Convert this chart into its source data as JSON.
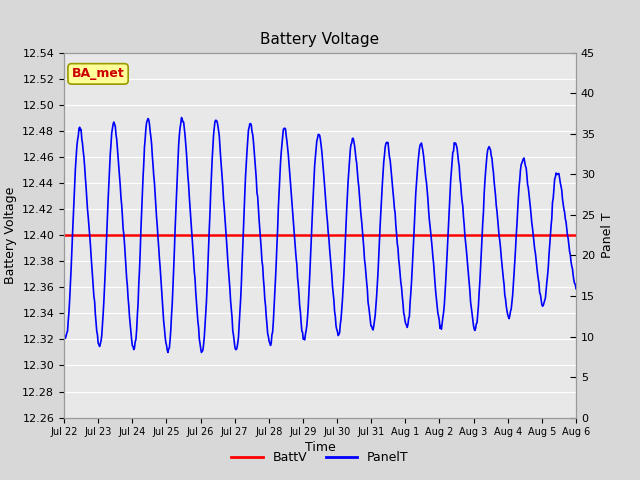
{
  "title": "Battery Voltage",
  "xlabel": "Time",
  "ylabel_left": "Battery Voltage",
  "ylabel_right": "Panel T",
  "ylim_left": [
    12.26,
    12.54
  ],
  "ylim_right": [
    0,
    45
  ],
  "yticks_left": [
    12.26,
    12.28,
    12.3,
    12.32,
    12.34,
    12.36,
    12.38,
    12.4,
    12.42,
    12.44,
    12.46,
    12.48,
    12.5,
    12.52,
    12.54
  ],
  "yticks_right": [
    0,
    5,
    10,
    15,
    20,
    25,
    30,
    35,
    40,
    45
  ],
  "xtick_labels": [
    "Jul 22",
    "Jul 23",
    "Jul 24",
    "Jul 25",
    "Jul 26",
    "Jul 27",
    "Jul 28",
    "Jul 29",
    "Jul 30",
    "Jul 31",
    "Aug 1",
    "Aug 2",
    "Aug 3",
    "Aug 4",
    "Aug 5",
    "Aug 6"
  ],
  "n_days": 15,
  "batt_v": 12.4,
  "legend_batt_color": "#ff0000",
  "legend_panel_color": "#0000ff",
  "annotation_text": "BA_met",
  "annotation_bg": "#ffff99",
  "annotation_border": "#999900",
  "background_color": "#d8d8d8",
  "plot_bg": "#e8e8e8",
  "grid_color": "#ffffff",
  "title_fontsize": 11,
  "label_fontsize": 9,
  "tick_fontsize": 8,
  "annot_fontsize": 9
}
